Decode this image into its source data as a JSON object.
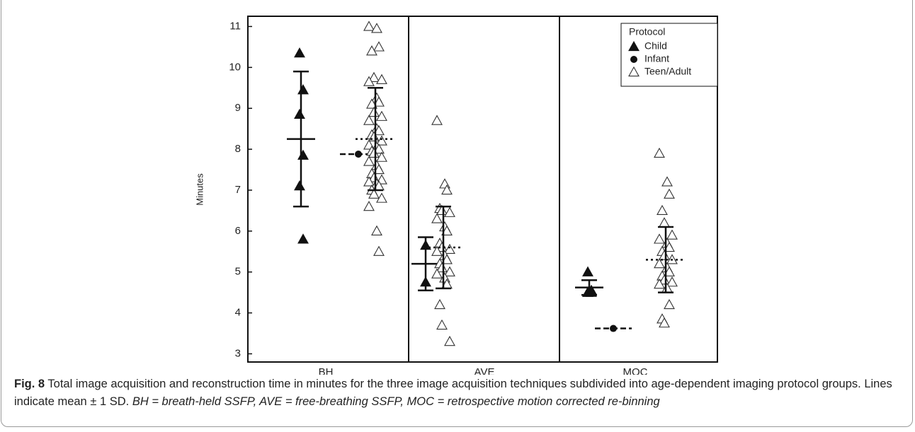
{
  "chart_data": {
    "type": "dot",
    "ylabel": "Minutes",
    "ylim": [
      2.8,
      11.25
    ],
    "yticks": [
      3,
      4,
      5,
      6,
      7,
      8,
      9,
      10,
      11
    ],
    "categories": [
      "BH",
      "AVE",
      "MOC"
    ],
    "legend_title": "Protocol",
    "legend": "upper right",
    "series": [
      {
        "name": "Child",
        "marker": "filled-triangle",
        "color": "#111111",
        "values": [
          [
            10.35,
            9.45,
            8.85,
            7.85,
            7.1,
            5.8
          ],
          [
            5.65,
            4.75
          ],
          [
            5.0,
            4.55,
            4.5,
            4.5,
            4.5
          ]
        ],
        "means": [
          8.25,
          5.2,
          4.62
        ],
        "sds": [
          1.65,
          0.65,
          0.18
        ]
      },
      {
        "name": "Infant",
        "marker": "filled-circle",
        "color": "#111111",
        "values": [
          [
            7.88
          ],
          [],
          [
            3.62
          ]
        ],
        "means": [
          7.88,
          null,
          3.62
        ],
        "sds": [
          null,
          null,
          null
        ]
      },
      {
        "name": "Teen/Adult",
        "marker": "open-triangle",
        "color": "#333333",
        "values": [
          [
            11.0,
            10.95,
            10.5,
            10.4,
            9.75,
            9.7,
            9.65,
            9.25,
            9.15,
            9.1,
            8.9,
            8.8,
            8.7,
            8.5,
            8.45,
            8.35,
            8.3,
            8.2,
            8.1,
            8.05,
            8.0,
            7.95,
            7.9,
            7.8,
            7.7,
            7.6,
            7.5,
            7.4,
            7.3,
            7.25,
            7.2,
            7.15,
            7.1,
            7.0,
            6.9,
            6.8,
            6.6,
            6.0,
            5.5
          ],
          [
            8.7,
            7.15,
            7.0,
            6.55,
            6.5,
            6.45,
            6.3,
            6.1,
            6.0,
            5.7,
            5.6,
            5.55,
            5.5,
            5.4,
            5.3,
            5.2,
            5.1,
            5.0,
            4.95,
            4.85,
            4.7,
            4.2,
            3.7,
            3.3
          ],
          [
            7.9,
            7.2,
            6.9,
            6.5,
            6.2,
            5.9,
            5.8,
            5.7,
            5.6,
            5.5,
            5.4,
            5.3,
            5.2,
            5.1,
            5.0,
            4.9,
            4.8,
            4.75,
            4.7,
            4.6,
            4.2,
            3.85,
            3.75
          ]
        ],
        "means": [
          8.25,
          5.6,
          5.3
        ],
        "sds": [
          1.25,
          1.0,
          0.8
        ]
      }
    ]
  },
  "caption": {
    "label": "Fig. 8",
    "text": "Total image acquisition and reconstruction time in minutes for the three image acquisition techniques subdivided into age-dependent imaging protocol groups. Lines indicate mean ± 1 SD.",
    "abbreviations": "BH = breath-held SSFP, AVE = free-breathing SSFP, MOC = retrospective motion corrected re-binning"
  }
}
